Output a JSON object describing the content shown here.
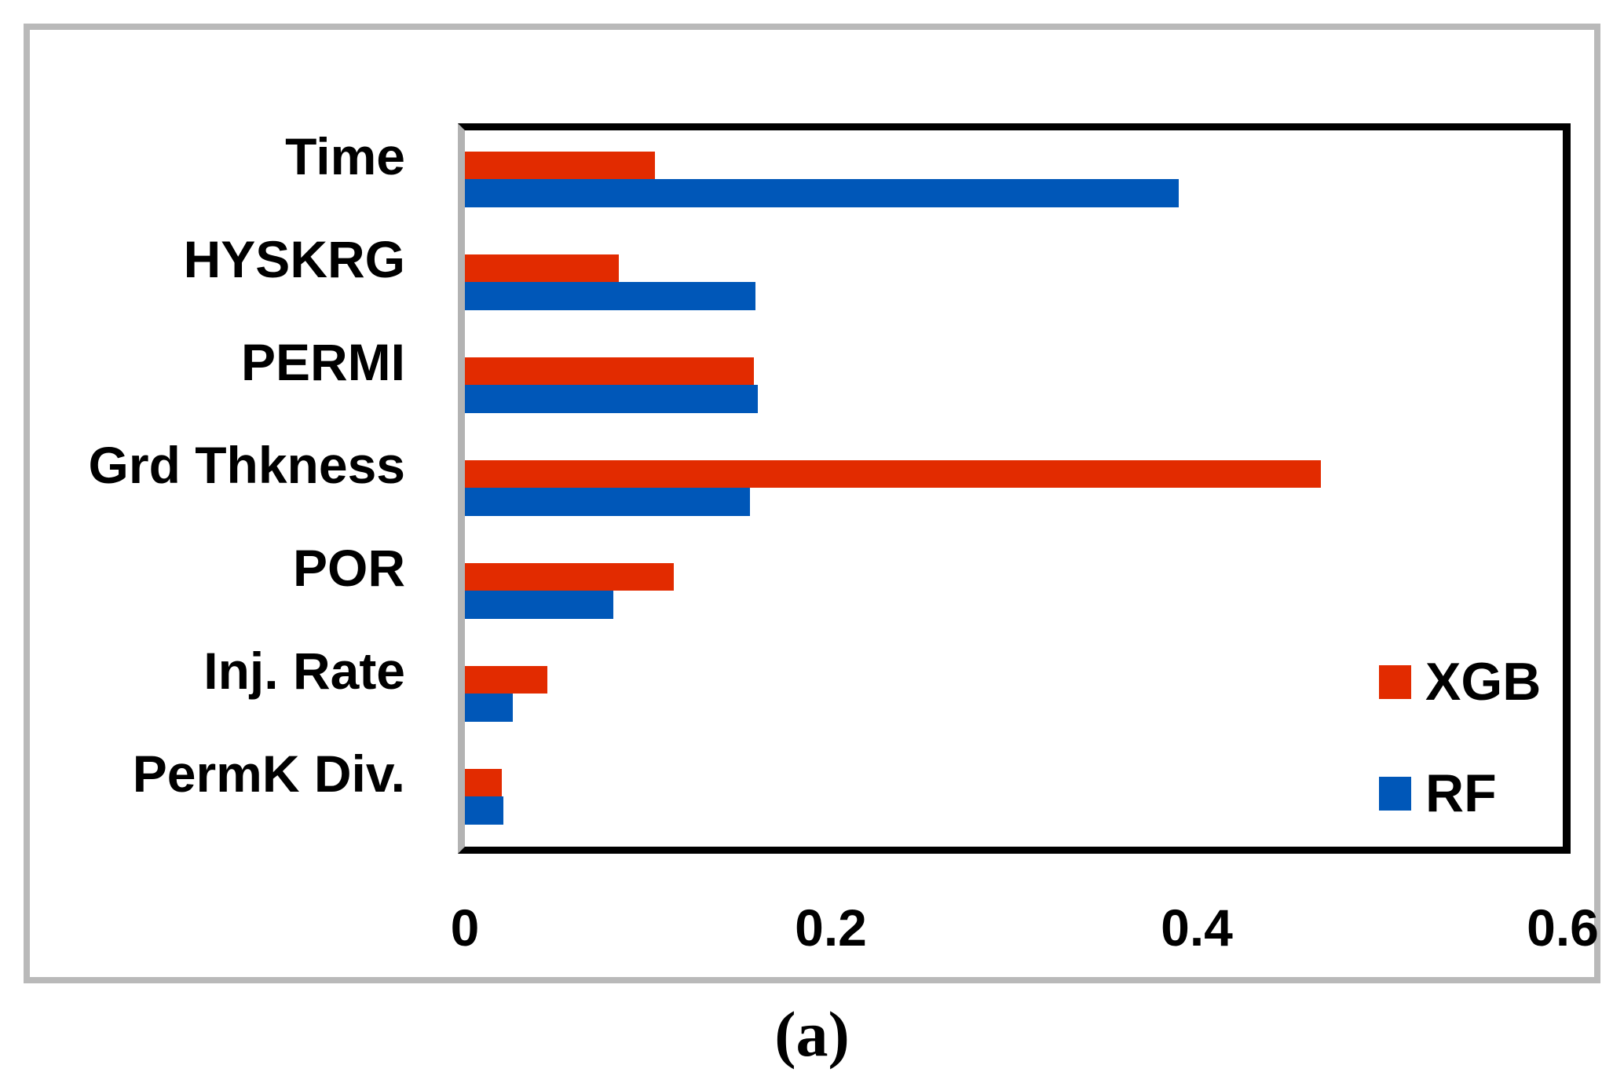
{
  "figure": {
    "caption": "(a)",
    "panel_border_color": "#b9b9b9",
    "axis_line_color": "#b3b3b3",
    "plot_border_color": "#000000",
    "background": "#ffffff"
  },
  "legend": {
    "items": [
      {
        "label": "XGB",
        "color": "#e22b00"
      },
      {
        "label": "RF",
        "color": "#0057b8"
      }
    ]
  },
  "chart_data": {
    "type": "bar",
    "orientation": "horizontal",
    "title": "",
    "xlabel": "",
    "ylabel": "",
    "categories": [
      "Time",
      "HYSKRG",
      "PERMI",
      "Grd Thkness",
      "POR",
      "Inj. Rate",
      "PermK Div."
    ],
    "series": [
      {
        "name": "XGB",
        "color": "#e22b00",
        "values": [
          0.104,
          0.084,
          0.158,
          0.468,
          0.114,
          0.045,
          0.02
        ]
      },
      {
        "name": "RF",
        "color": "#0057b8",
        "values": [
          0.39,
          0.159,
          0.16,
          0.156,
          0.081,
          0.026,
          0.021
        ]
      }
    ],
    "xlim": [
      0,
      0.6
    ],
    "x_ticks": [
      0,
      0.2,
      0.4,
      0.6
    ],
    "x_tick_labels": [
      "0",
      "0.2",
      "0.4",
      "0.6"
    ],
    "grid": false,
    "legend_position": "inside-middle-right"
  }
}
